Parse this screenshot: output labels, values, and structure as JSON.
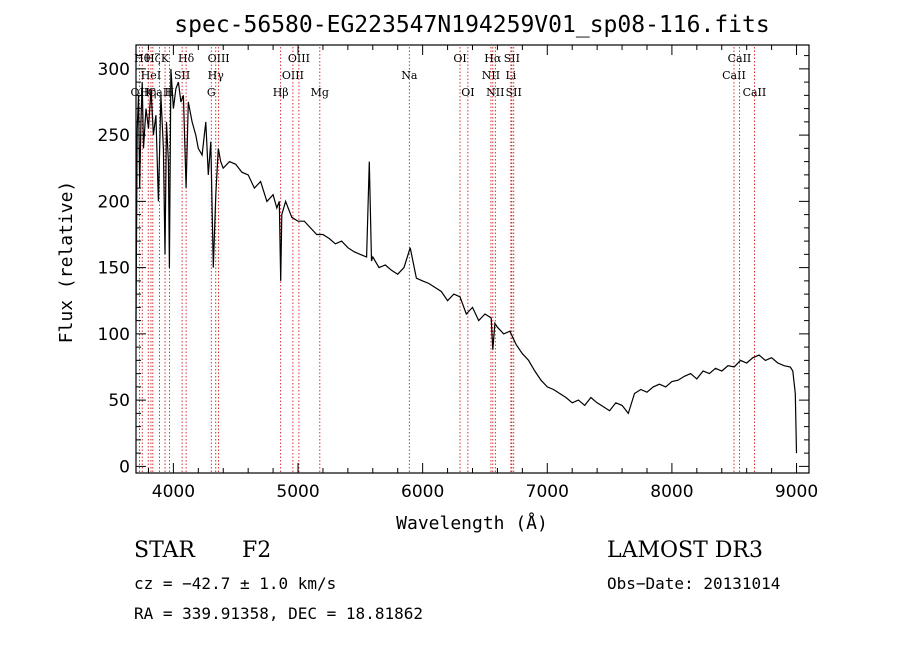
{
  "chart_data": {
    "type": "line",
    "title": "spec-56580-EG223547N194259V01_sp08-116.fits",
    "xlabel": "Wavelength (Å)",
    "ylabel": "Flux (relative)",
    "xlim": [
      3700,
      9100
    ],
    "ylim": [
      -5,
      318
    ],
    "xticks": [
      4000,
      5000,
      6000,
      7000,
      8000,
      9000
    ],
    "yticks": [
      0,
      50,
      100,
      150,
      200,
      250,
      300
    ],
    "grid": false,
    "line_color": "#000000",
    "marker_color": "#cc0000",
    "series": [
      {
        "x": [
          3700,
          3710,
          3720,
          3730,
          3740,
          3750,
          3760,
          3780,
          3800,
          3820,
          3840,
          3860,
          3880,
          3900,
          3920,
          3933,
          3945,
          3960,
          3968,
          3980,
          4000,
          4020,
          4040,
          4060,
          4080,
          4102,
          4120,
          4150,
          4180,
          4200,
          4230,
          4260,
          4280,
          4300,
          4320,
          4340,
          4360,
          4380,
          4400,
          4450,
          4500,
          4550,
          4600,
          4650,
          4700,
          4750,
          4800,
          4830,
          4850,
          4861,
          4870,
          4900,
          4950,
          5000,
          5050,
          5100,
          5150,
          5200,
          5250,
          5300,
          5350,
          5400,
          5450,
          5500,
          5550,
          5572,
          5590,
          5600,
          5650,
          5700,
          5750,
          5800,
          5850,
          5900,
          5950,
          6000,
          6050,
          6100,
          6150,
          6200,
          6250,
          6300,
          6350,
          6400,
          6450,
          6500,
          6550,
          6563,
          6580,
          6600,
          6650,
          6700,
          6750,
          6800,
          6850,
          6900,
          6950,
          7000,
          7050,
          7100,
          7150,
          7200,
          7250,
          7300,
          7350,
          7400,
          7450,
          7500,
          7550,
          7600,
          7650,
          7700,
          7750,
          7800,
          7850,
          7900,
          7950,
          8000,
          8050,
          8100,
          8150,
          8200,
          8250,
          8300,
          8350,
          8400,
          8450,
          8500,
          8550,
          8600,
          8650,
          8700,
          8750,
          8800,
          8850,
          8900,
          8950,
          8970,
          8990,
          9000
        ],
        "y": [
          110,
          255,
          280,
          210,
          262,
          290,
          240,
          270,
          255,
          285,
          250,
          265,
          200,
          280,
          240,
          160,
          260,
          230,
          150,
          300,
          270,
          285,
          290,
          275,
          280,
          210,
          275,
          260,
          250,
          240,
          235,
          260,
          220,
          245,
          150,
          205,
          240,
          230,
          225,
          230,
          228,
          222,
          220,
          210,
          215,
          200,
          205,
          195,
          200,
          140,
          190,
          200,
          188,
          185,
          185,
          180,
          175,
          175,
          172,
          168,
          170,
          165,
          162,
          160,
          158,
          230,
          155,
          158,
          150,
          152,
          148,
          145,
          150,
          165,
          142,
          140,
          138,
          135,
          132,
          125,
          130,
          128,
          115,
          120,
          110,
          115,
          112,
          88,
          108,
          105,
          100,
          102,
          92,
          85,
          80,
          72,
          65,
          60,
          58,
          55,
          52,
          48,
          50,
          46,
          52,
          48,
          45,
          42,
          48,
          46,
          40,
          55,
          58,
          56,
          60,
          62,
          60,
          64,
          65,
          68,
          70,
          66,
          72,
          70,
          74,
          72,
          76,
          75,
          80,
          78,
          82,
          84,
          80,
          82,
          78,
          76,
          75,
          72,
          55,
          10
        ]
      }
    ],
    "line_markers": [
      {
        "wl": 3727,
        "label": "OII",
        "row": 3
      },
      {
        "wl": 3750,
        "label": "Hθ",
        "row": 1
      },
      {
        "wl": 3798,
        "label": "Hη",
        "row": 3
      },
      {
        "wl": 3820,
        "label": "HeI",
        "row": 2
      },
      {
        "wl": 3835,
        "label": "Hζ",
        "row": 1
      },
      {
        "wl": 3889,
        "label": "CaII",
        "row": 3
      },
      {
        "wl": 3933,
        "label": "K",
        "row": 1
      },
      {
        "wl": 3968,
        "label": "H",
        "row": 3
      },
      {
        "wl": 4070,
        "label": "SII",
        "row": 2
      },
      {
        "wl": 4102,
        "label": "Hδ",
        "row": 1
      },
      {
        "wl": 4304,
        "label": "G",
        "row": 3
      },
      {
        "wl": 4340,
        "label": "Hγ",
        "row": 2
      },
      {
        "wl": 4363,
        "label": "OIII",
        "row": 1
      },
      {
        "wl": 4861,
        "label": "Hβ",
        "row": 3
      },
      {
        "wl": 4959,
        "label": "OIII",
        "row": 2
      },
      {
        "wl": 5007,
        "label": "OIII",
        "row": 1
      },
      {
        "wl": 5175,
        "label": "Mg",
        "row": 3
      },
      {
        "wl": 5893,
        "label": "Na",
        "row": 2
      },
      {
        "wl": 6300,
        "label": "OI",
        "row": 1
      },
      {
        "wl": 6363,
        "label": "OI",
        "row": 3
      },
      {
        "wl": 6548,
        "label": "NII",
        "row": 2
      },
      {
        "wl": 6563,
        "label": "Hα",
        "row": 1
      },
      {
        "wl": 6583,
        "label": "NII",
        "row": 3
      },
      {
        "wl": 6708,
        "label": "Li",
        "row": 2
      },
      {
        "wl": 6716,
        "label": "SII",
        "row": 1
      },
      {
        "wl": 6731,
        "label": "SII",
        "row": 3
      },
      {
        "wl": 8498,
        "label": "CaII",
        "row": 2
      },
      {
        "wl": 8542,
        "label": "CaII",
        "row": 1
      },
      {
        "wl": 8662,
        "label": "CaII",
        "row": 3
      }
    ]
  },
  "info": {
    "class": "STAR",
    "subclass": "F2",
    "survey": "LAMOST DR3",
    "cz": "cz = −42.7 ± 1.0 km/s",
    "obs_date": "Obs−Date: 20131014",
    "radec": "RA = 339.91358, DEC =  18.81862"
  }
}
